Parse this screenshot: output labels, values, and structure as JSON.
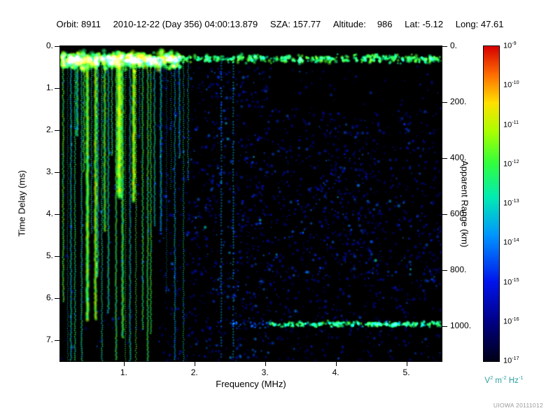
{
  "header": {
    "orbit_label": "Orbit:",
    "orbit": "8911",
    "datetime": "2010-12-22 (Day 356) 04:00:13.879",
    "sza_label": "SZA:",
    "sza": "157.77",
    "altitude_label": "Altitude:",
    "altitude": "986",
    "lat_label": "Lat:",
    "lat": "-5.12",
    "long_label": "Long:",
    "long": "47.61"
  },
  "credit": "UIOWA 20111012",
  "chart_data": {
    "type": "heatmap",
    "xlabel": "Frequency (MHz)",
    "ylabel": "Time Delay (ms)",
    "ylabel_right": "Apparent Range (km)",
    "x_range_mhz": [
      0.1,
      5.5
    ],
    "y_range_ms": [
      0.0,
      7.5
    ],
    "x_tick_values": [
      1,
      2,
      3,
      4,
      5
    ],
    "x_tick_labels": [
      "1.",
      "2.",
      "3.",
      "4.",
      "5."
    ],
    "y_tick_values": [
      0,
      1,
      2,
      3,
      4,
      5,
      6,
      7
    ],
    "y_tick_labels": [
      "0.",
      "1.",
      "2.",
      "3.",
      "4.",
      "5.",
      "6.",
      "7."
    ],
    "right_tick_values_km": [
      0,
      200,
      400,
      600,
      800,
      1000
    ],
    "right_tick_labels": [
      "0.",
      "200.",
      "400.",
      "600.",
      "800.",
      "1000."
    ],
    "range_km_per_ms": 150,
    "background": "#000000",
    "colorbar": {
      "scale": "log",
      "exponents": [
        -9,
        -10,
        -11,
        -12,
        -13,
        -14,
        -15,
        -16,
        -17
      ],
      "unit_parts": [
        [
          "V",
          "2"
        ],
        [
          " m",
          "-2"
        ],
        [
          " Hz",
          "-1"
        ]
      ]
    },
    "features": [
      {
        "type": "speckle",
        "name": "background-noise",
        "trials": 5600,
        "intensity": [
          0.15,
          0.4
        ],
        "radius": [
          1.2,
          3.4
        ],
        "regions": [
          {
            "f": [
              0.1,
              1.5
            ],
            "t": [
              0.3,
              7.5
            ],
            "d": 0.08
          },
          {
            "f": [
              1.5,
              2.15
            ],
            "t": [
              0.5,
              7.5
            ],
            "d": 0.55
          },
          {
            "f": [
              2.15,
              3.1
            ],
            "t": [
              0.5,
              7.5
            ],
            "d": 0.78
          },
          {
            "f": [
              3.1,
              5.5
            ],
            "t": [
              0.3,
              1.5
            ],
            "d": 0.13
          },
          {
            "f": [
              3.1,
              5.5
            ],
            "t": [
              1.5,
              3.2
            ],
            "d": 0.5
          },
          {
            "f": [
              3.1,
              5.5
            ],
            "t": [
              3.2,
              5.6
            ],
            "d": 0.62
          },
          {
            "f": [
              3.1,
              5.5
            ],
            "t": [
              5.6,
              7.5
            ],
            "d": 0.42
          },
          {
            "f": [
              3.75,
              4.55
            ],
            "t": [
              1.8,
              5.6
            ],
            "d": 0.85
          }
        ]
      },
      {
        "type": "vlines",
        "name": "interference-lines",
        "freqs": [
          2.38,
          2.55
        ],
        "t_start": 0.4,
        "t_end": 7.45,
        "intensity": [
          0.4,
          0.5
        ],
        "gap_prob": 0.18
      },
      {
        "type": "vstreaks",
        "name": "plasma-harmonic-streaks",
        "f_start": 0.13,
        "f_end": 1.45,
        "count": 27,
        "t_top": 0.2,
        "full_prob": 0.4,
        "len_frac": [
          0.25,
          0.95
        ],
        "width": [
          1.2,
          3.0
        ],
        "intensity": [
          0.48,
          0.66
        ],
        "jitter_mhz": 0.012,
        "thick_prob": 0.2
      },
      {
        "type": "vstreaks",
        "name": "plasma-harmonic-streaks-sparse",
        "f_start": 1.5,
        "f_end": 1.95,
        "count": 7,
        "t_top": 0.25,
        "full_prob": 0.25,
        "len_frac": [
          0.2,
          0.8
        ],
        "width": [
          1.0,
          2.4
        ],
        "intensity": [
          0.42,
          0.58
        ],
        "jitter_mhz": 0.02,
        "thick_prob": 0.1
      },
      {
        "type": "hband",
        "name": "ionosphere-echo-band",
        "t_center": 0.3,
        "t_sigma": 0.06,
        "f_start": 0.1,
        "f_end": 5.5,
        "count": 520,
        "intensity": [
          0.52,
          0.68
        ],
        "radius": [
          2,
          4
        ]
      },
      {
        "type": "hband",
        "name": "ionosphere-echo-band-dense",
        "t_center": 0.34,
        "t_sigma": 0.11,
        "f_start": 0.1,
        "f_end": 1.8,
        "count": 400,
        "intensity": [
          0.55,
          0.76
        ],
        "radius": [
          3,
          6
        ]
      },
      {
        "type": "hband",
        "name": "surface-reflection-trace",
        "t_center": 6.62,
        "t_sigma": 0.04,
        "f_start": 3.05,
        "f_end": 5.48,
        "count": 230,
        "intensity": [
          0.5,
          0.66
        ],
        "radius": [
          2,
          3.5
        ]
      },
      {
        "type": "hband",
        "name": "surface-reflection-faint",
        "t_center": 6.62,
        "t_sigma": 0.05,
        "f_start": 2.5,
        "f_end": 3.05,
        "count": 34,
        "intensity": [
          0.28,
          0.38
        ],
        "radius": [
          1.5,
          2.4
        ]
      }
    ]
  }
}
